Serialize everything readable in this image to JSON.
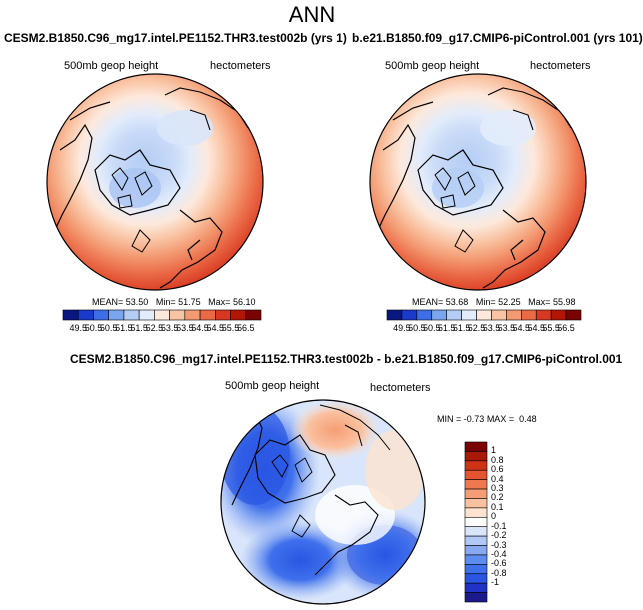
{
  "title": "ANN",
  "colors": {
    "hbar": [
      "#0a1780",
      "#1a3acc",
      "#3c6fe6",
      "#7aa6ef",
      "#b4cdf5",
      "#e2ecfb",
      "#fde9dc",
      "#f9c4a4",
      "#f39a72",
      "#ea6a46",
      "#d8381f",
      "#b31607",
      "#7a0403"
    ],
    "dbar": [
      "#1a1a8c",
      "#1f33c7",
      "#2a55e3",
      "#3f70ec",
      "#5d8cef",
      "#86a9f2",
      "#b1c8f6",
      "#d9e5fa",
      "#ffffff",
      "#fde3d0",
      "#fac1a0",
      "#f59e75",
      "#ee7850",
      "#e55430",
      "#cc3317",
      "#a71a08",
      "#7a0403"
    ]
  },
  "chart_data": [
    {
      "type": "heatmap",
      "title": "CESM2.B1850.C96_mg17.intel.PE1152.THR3.test002b (yrs 1)",
      "field": "500mb geop height",
      "units": "hectometers",
      "stats": {
        "mean": "53.50",
        "min": "51.75",
        "max": "56.10"
      },
      "levels": [
        "49.5",
        "50.5",
        "50.5",
        "51.5",
        "51.5",
        "52.5",
        "53.5",
        "53.5",
        "54.5",
        "54.5",
        "55.5",
        "56.5"
      ]
    },
    {
      "type": "heatmap",
      "title": "b.e21.B1850.f09_g17.CMIP6-piControl.001 (yrs 101)",
      "field": "500mb geop height",
      "units": "hectometers",
      "stats": {
        "mean": "53.68",
        "min": "52.25",
        "max": "55.98"
      },
      "levels": [
        "49.5",
        "50.5",
        "50.5",
        "51.5",
        "51.5",
        "52.5",
        "53.5",
        "53.5",
        "54.5",
        "54.5",
        "55.5",
        "56.5"
      ]
    },
    {
      "type": "heatmap",
      "title": "CESM2.B1850.C96_mg17.intel.PE1152.THR3.test002b - b.e21.B1850.f09_g17.CMIP6-piControl.001",
      "field": "500mb geop height",
      "units": "hectometers",
      "stats": {
        "min": "-0.73",
        "max": "0.48"
      },
      "levels": [
        "1",
        "0.8",
        "0.6",
        "0.4",
        "0.3",
        "0.2",
        "0.1",
        "0",
        "-0.1",
        "-0.2",
        "-0.3",
        "-0.4",
        "-0.6",
        "-0.8",
        "-1"
      ]
    }
  ],
  "labels": {
    "mean": "MEAN=",
    "min": "Min=",
    "max": "Max=",
    "min_eq": "MIN =",
    "max_eq": "MAX ="
  }
}
